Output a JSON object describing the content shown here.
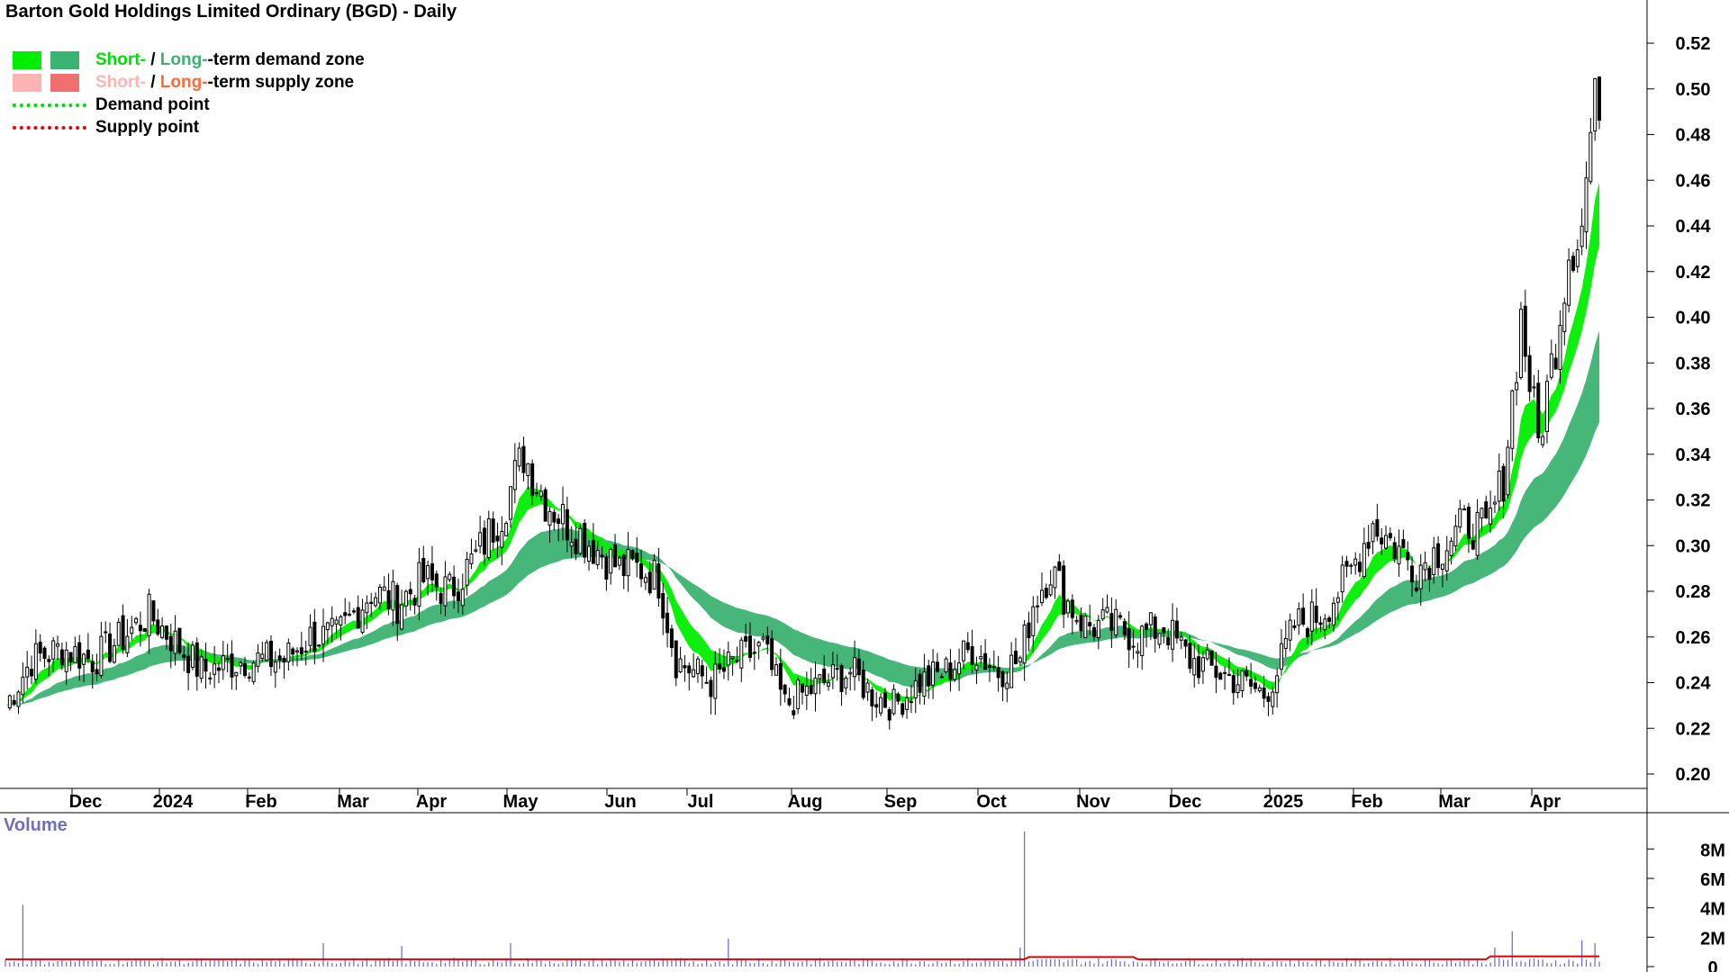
{
  "chart_data": {
    "type": "candlestick",
    "title": "Barton Gold Holdings Limited Ordinary (BGD) - Daily",
    "ylim": [
      0.195,
      0.53
    ],
    "yticks": [
      "0.52",
      "0.50",
      "0.48",
      "0.46",
      "0.44",
      "0.42",
      "0.40",
      "0.38",
      "0.36",
      "0.34",
      "0.32",
      "0.30",
      "0.28",
      "0.26",
      "0.24",
      "0.22",
      "0.20"
    ],
    "xticks": [
      "Dec",
      "2024",
      "Feb",
      "Mar",
      "Apr",
      "May",
      "Jun",
      "Jul",
      "Aug",
      "Sep",
      "Oct",
      "Nov",
      "Dec",
      "2025",
      "Feb",
      "Mar",
      "Apr"
    ],
    "volume_label": "Volume",
    "volume_ticks": [
      "8M",
      "6M",
      "4M",
      "2M",
      "0"
    ],
    "volume_max": 9000000,
    "close_anchors": [
      {
        "t": 0,
        "v": 0.23
      },
      {
        "t": 6,
        "v": 0.25
      },
      {
        "t": 13,
        "v": 0.255
      },
      {
        "t": 20,
        "v": 0.25
      },
      {
        "t": 27,
        "v": 0.26
      },
      {
        "t": 33,
        "v": 0.27
      },
      {
        "t": 38,
        "v": 0.26
      },
      {
        "t": 45,
        "v": 0.245
      },
      {
        "t": 55,
        "v": 0.25
      },
      {
        "t": 64,
        "v": 0.25
      },
      {
        "t": 70,
        "v": 0.26
      },
      {
        "t": 76,
        "v": 0.26
      },
      {
        "t": 84,
        "v": 0.28
      },
      {
        "t": 90,
        "v": 0.275
      },
      {
        "t": 96,
        "v": 0.285
      },
      {
        "t": 102,
        "v": 0.28
      },
      {
        "t": 108,
        "v": 0.295
      },
      {
        "t": 114,
        "v": 0.315
      },
      {
        "t": 119,
        "v": 0.34
      },
      {
        "t": 124,
        "v": 0.32
      },
      {
        "t": 129,
        "v": 0.31
      },
      {
        "t": 135,
        "v": 0.3
      },
      {
        "t": 141,
        "v": 0.29
      },
      {
        "t": 146,
        "v": 0.29
      },
      {
        "t": 150,
        "v": 0.285
      },
      {
        "t": 154,
        "v": 0.25
      },
      {
        "t": 162,
        "v": 0.24
      },
      {
        "t": 168,
        "v": 0.25
      },
      {
        "t": 174,
        "v": 0.255
      },
      {
        "t": 179,
        "v": 0.23
      },
      {
        "t": 183,
        "v": 0.235
      },
      {
        "t": 188,
        "v": 0.24
      },
      {
        "t": 194,
        "v": 0.245
      },
      {
        "t": 199,
        "v": 0.235
      },
      {
        "t": 204,
        "v": 0.23
      },
      {
        "t": 210,
        "v": 0.24
      },
      {
        "t": 216,
        "v": 0.245
      },
      {
        "t": 222,
        "v": 0.255
      },
      {
        "t": 228,
        "v": 0.245
      },
      {
        "t": 233,
        "v": 0.25
      },
      {
        "t": 236,
        "v": 0.275
      },
      {
        "t": 240,
        "v": 0.29
      },
      {
        "t": 244,
        "v": 0.275
      },
      {
        "t": 248,
        "v": 0.265
      },
      {
        "t": 254,
        "v": 0.265
      },
      {
        "t": 260,
        "v": 0.26
      },
      {
        "t": 266,
        "v": 0.265
      },
      {
        "t": 272,
        "v": 0.25
      },
      {
        "t": 278,
        "v": 0.245
      },
      {
        "t": 284,
        "v": 0.24
      },
      {
        "t": 289,
        "v": 0.235
      },
      {
        "t": 292,
        "v": 0.245
      },
      {
        "t": 296,
        "v": 0.265
      },
      {
        "t": 302,
        "v": 0.27
      },
      {
        "t": 308,
        "v": 0.285
      },
      {
        "t": 314,
        "v": 0.31
      },
      {
        "t": 319,
        "v": 0.3
      },
      {
        "t": 324,
        "v": 0.29
      },
      {
        "t": 330,
        "v": 0.3
      },
      {
        "t": 336,
        "v": 0.31
      },
      {
        "t": 340,
        "v": 0.305
      },
      {
        "t": 344,
        "v": 0.33
      },
      {
        "t": 348,
        "v": 0.4
      },
      {
        "t": 352,
        "v": 0.345
      },
      {
        "t": 356,
        "v": 0.39
      },
      {
        "t": 359,
        "v": 0.43
      },
      {
        "t": 362,
        "v": 0.44
      },
      {
        "t": 364,
        "v": 0.48
      },
      {
        "t": 366,
        "v": 0.5
      }
    ],
    "volume_spikes": [
      {
        "t": 4,
        "v": 4200000
      },
      {
        "t": 73,
        "v": 1600000
      },
      {
        "t": 91,
        "v": 1400000
      },
      {
        "t": 116,
        "v": 1600000
      },
      {
        "t": 166,
        "v": 1900000
      },
      {
        "t": 234,
        "v": 9200000
      },
      {
        "t": 233,
        "v": 1300000
      },
      {
        "t": 342,
        "v": 1300000
      },
      {
        "t": 346,
        "v": 2400000
      },
      {
        "t": 362,
        "v": 1800000
      },
      {
        "t": 365,
        "v": 1600000
      }
    ],
    "series": [
      {
        "name": "Short-term demand zone",
        "color": "#00ee00"
      },
      {
        "name": "Long-term demand zone",
        "color": "#3cb371"
      },
      {
        "name": "Short-term supply zone",
        "color": "#ffb3b3"
      },
      {
        "name": "Long-term supply zone",
        "color": "#ff6a3a"
      }
    ]
  },
  "legend": {
    "demand_short": "Short-",
    "demand_sep": " / ",
    "demand_long": "Long-",
    "demand_rest": "-term demand zone",
    "supply_short": "Short-",
    "supply_sep": " / ",
    "supply_long": "Long-",
    "supply_rest": "-term supply zone",
    "demand_point": "Demand point",
    "supply_point": "Supply point"
  },
  "colors": {
    "demand_short": "#00ee00",
    "demand_long": "#3cb371",
    "supply_short": "#ffb3b3",
    "supply_long": "#ff7755",
    "demand_point": "#00dd00",
    "supply_point": "#ee0000",
    "volume_bar": "#6666cc",
    "volume_avg": "#dd0000",
    "volume_label": "#7070b8"
  }
}
